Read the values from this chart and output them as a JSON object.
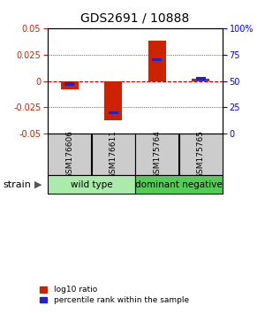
{
  "title": "GDS2691 / 10888",
  "samples": [
    "GSM176606",
    "GSM176611",
    "GSM175764",
    "GSM175765"
  ],
  "log10_ratio": [
    -0.008,
    -0.037,
    0.038,
    0.002
  ],
  "percentile_rank": [
    47,
    20,
    70,
    52
  ],
  "groups": [
    {
      "label": "wild type",
      "color": "#aaeaaa",
      "indices": [
        0,
        1
      ]
    },
    {
      "label": "dominant negative",
      "color": "#55cc55",
      "indices": [
        2,
        3
      ]
    }
  ],
  "group_row_label": "strain",
  "ylim": [
    -0.05,
    0.05
  ],
  "yticks_left": [
    -0.05,
    -0.025,
    0,
    0.025,
    0.05
  ],
  "yticks_right": [
    0,
    25,
    50,
    75,
    100
  ],
  "bar_color_red": "#cc2200",
  "bar_color_blue": "#2222cc",
  "zero_line_color": "#cc0000",
  "sample_box_color": "#cccccc",
  "legend_red_label": "log10 ratio",
  "legend_blue_label": "percentile rank within the sample",
  "bar_width": 0.4
}
